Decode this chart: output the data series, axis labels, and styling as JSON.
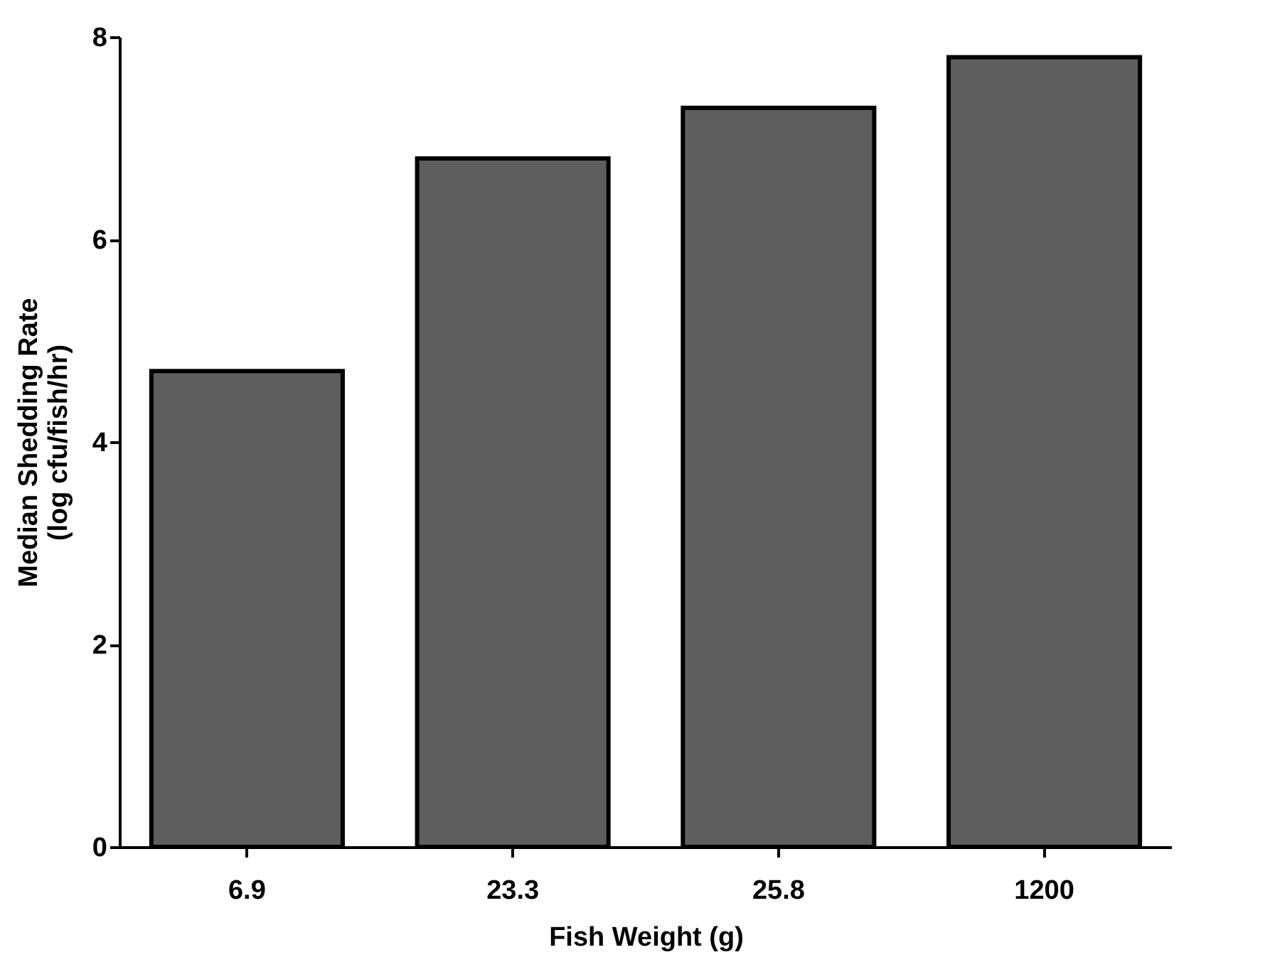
{
  "chart_data": {
    "type": "bar",
    "xlabel": "Fish Weight (g)",
    "ylabel": "Median Shedding Rate\n(log  cfu/fish/hr)",
    "categories": [
      "6.9",
      "23.3",
      "25.8",
      "1200"
    ],
    "values": [
      4.7,
      6.8,
      7.3,
      7.8
    ],
    "color": "#5e5e5e",
    "ylim": [
      0,
      8
    ],
    "yticks": [
      0,
      2,
      4,
      6,
      8
    ],
    "grid": false
  }
}
